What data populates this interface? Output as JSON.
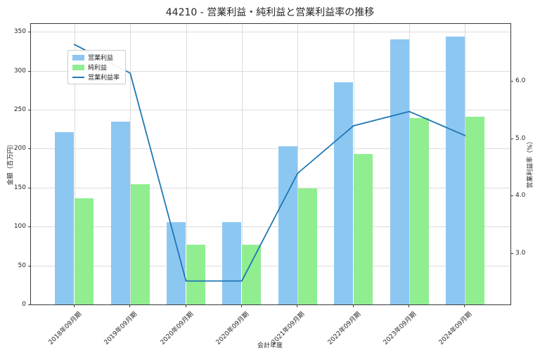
{
  "title": "44210 - 営業利益・純利益と営業利益率の推移",
  "axes": {
    "left_label": "金額（百万円）",
    "right_label": "営業利益率（%）",
    "x_label": "会計年度"
  },
  "colors": {
    "operating_profit_bar": "#8cc7f2",
    "net_profit_bar": "#90ee90",
    "margin_line": "#1f77b4",
    "grid": "#dcdcdc",
    "spine": "#3a3a3a"
  },
  "chart_data": {
    "type": "bar",
    "title": "44210 - 営業利益・純利益と営業利益率の推移",
    "xlabel": "会計年度",
    "ylabel_left": "金額（百万円）",
    "ylabel_right": "営業利益率（%）",
    "categories": [
      "2018年09月期",
      "2019年09月期",
      "2020年09月期",
      "2020年09月期",
      "2021年09月期",
      "2022年09月期",
      "2023年09月期",
      "2024年09月期"
    ],
    "series": [
      {
        "name": "営業利益",
        "type": "bar",
        "axis": "left",
        "color": "#8cc7f2",
        "values": [
          221,
          235,
          106,
          106,
          203,
          285,
          340,
          344
        ]
      },
      {
        "name": "純利益",
        "type": "bar",
        "axis": "left",
        "color": "#90ee90",
        "values": [
          136,
          154,
          77,
          77,
          149,
          193,
          239,
          241
        ]
      },
      {
        "name": "営業利益率",
        "type": "line",
        "axis": "right",
        "color": "#1f77b4",
        "values": [
          6.64,
          6.14,
          2.51,
          2.51,
          4.39,
          5.22,
          5.47,
          5.05
        ]
      }
    ],
    "left_ticks": [
      0,
      50,
      100,
      150,
      200,
      250,
      300,
      350
    ],
    "right_ticks": [
      "3.0",
      "4.0",
      "5.0",
      "6.0"
    ],
    "left_ylim": [
      0,
      360
    ],
    "right_ylim": [
      2.1,
      7.0
    ],
    "grid": true,
    "legend_position": "upper left"
  }
}
